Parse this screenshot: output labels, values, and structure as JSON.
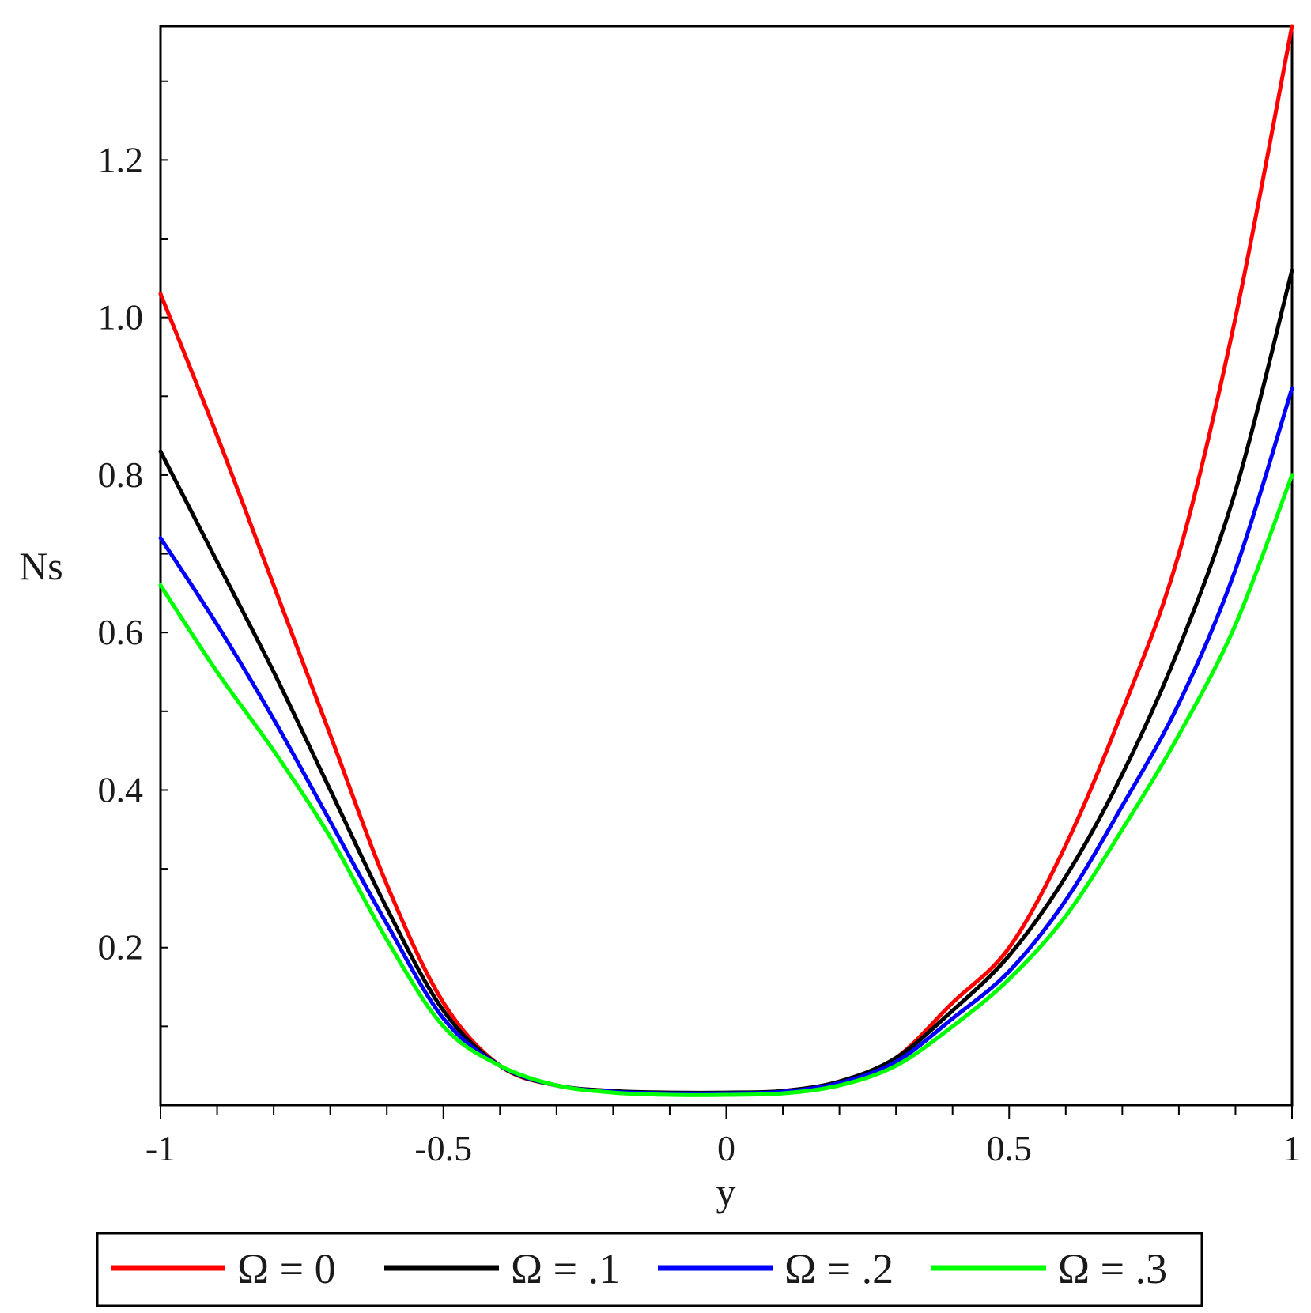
{
  "chart_data": {
    "type": "line",
    "title": "",
    "xlabel": "y",
    "ylabel": "Ns",
    "xlim": [
      -1.0,
      1.0
    ],
    "ylim": [
      0.0,
      1.37
    ],
    "x_ticks": [
      -1,
      -0.5,
      0,
      0.5,
      1
    ],
    "x_tick_labels": [
      "-1",
      "-0.5",
      "0",
      "0.5",
      "1"
    ],
    "y_ticks": [
      0.2,
      0.4,
      0.6,
      0.8,
      1.0,
      1.2
    ],
    "y_tick_labels": [
      "0.2",
      "0.4",
      "0.6",
      "0.8",
      "1.0",
      "1.2"
    ],
    "grid": false,
    "legend_position": "bottom",
    "x": [
      -1.0,
      -0.9,
      -0.8,
      -0.7,
      -0.6,
      -0.5,
      -0.4,
      -0.3,
      -0.2,
      -0.1,
      0.0,
      0.1,
      0.2,
      0.3,
      0.4,
      0.5,
      0.6,
      0.7,
      0.8,
      0.9,
      1.0
    ],
    "series": [
      {
        "name": "Ω = 0",
        "color": "#ff0000",
        "values": [
          1.03,
          0.85,
          0.66,
          0.47,
          0.28,
          0.13,
          0.05,
          0.025,
          0.018,
          0.015,
          0.015,
          0.018,
          0.03,
          0.06,
          0.13,
          0.2,
          0.33,
          0.5,
          0.7,
          1.0,
          1.37
        ]
      },
      {
        "name": "Ω = .1",
        "color": "#000000",
        "values": [
          0.83,
          0.69,
          0.55,
          0.4,
          0.25,
          0.12,
          0.05,
          0.025,
          0.018,
          0.016,
          0.016,
          0.018,
          0.03,
          0.06,
          0.12,
          0.19,
          0.29,
          0.42,
          0.58,
          0.78,
          1.06
        ]
      },
      {
        "name": "Ω = .2",
        "color": "#0000ff",
        "values": [
          0.72,
          0.61,
          0.49,
          0.36,
          0.23,
          0.11,
          0.05,
          0.025,
          0.017,
          0.015,
          0.015,
          0.017,
          0.028,
          0.055,
          0.11,
          0.17,
          0.26,
          0.38,
          0.51,
          0.68,
          0.91
        ]
      },
      {
        "name": "Ω = .3",
        "color": "#00ff00",
        "values": [
          0.66,
          0.55,
          0.45,
          0.34,
          0.21,
          0.1,
          0.05,
          0.025,
          0.016,
          0.013,
          0.013,
          0.015,
          0.025,
          0.05,
          0.1,
          0.16,
          0.24,
          0.35,
          0.47,
          0.61,
          0.8
        ]
      }
    ]
  }
}
